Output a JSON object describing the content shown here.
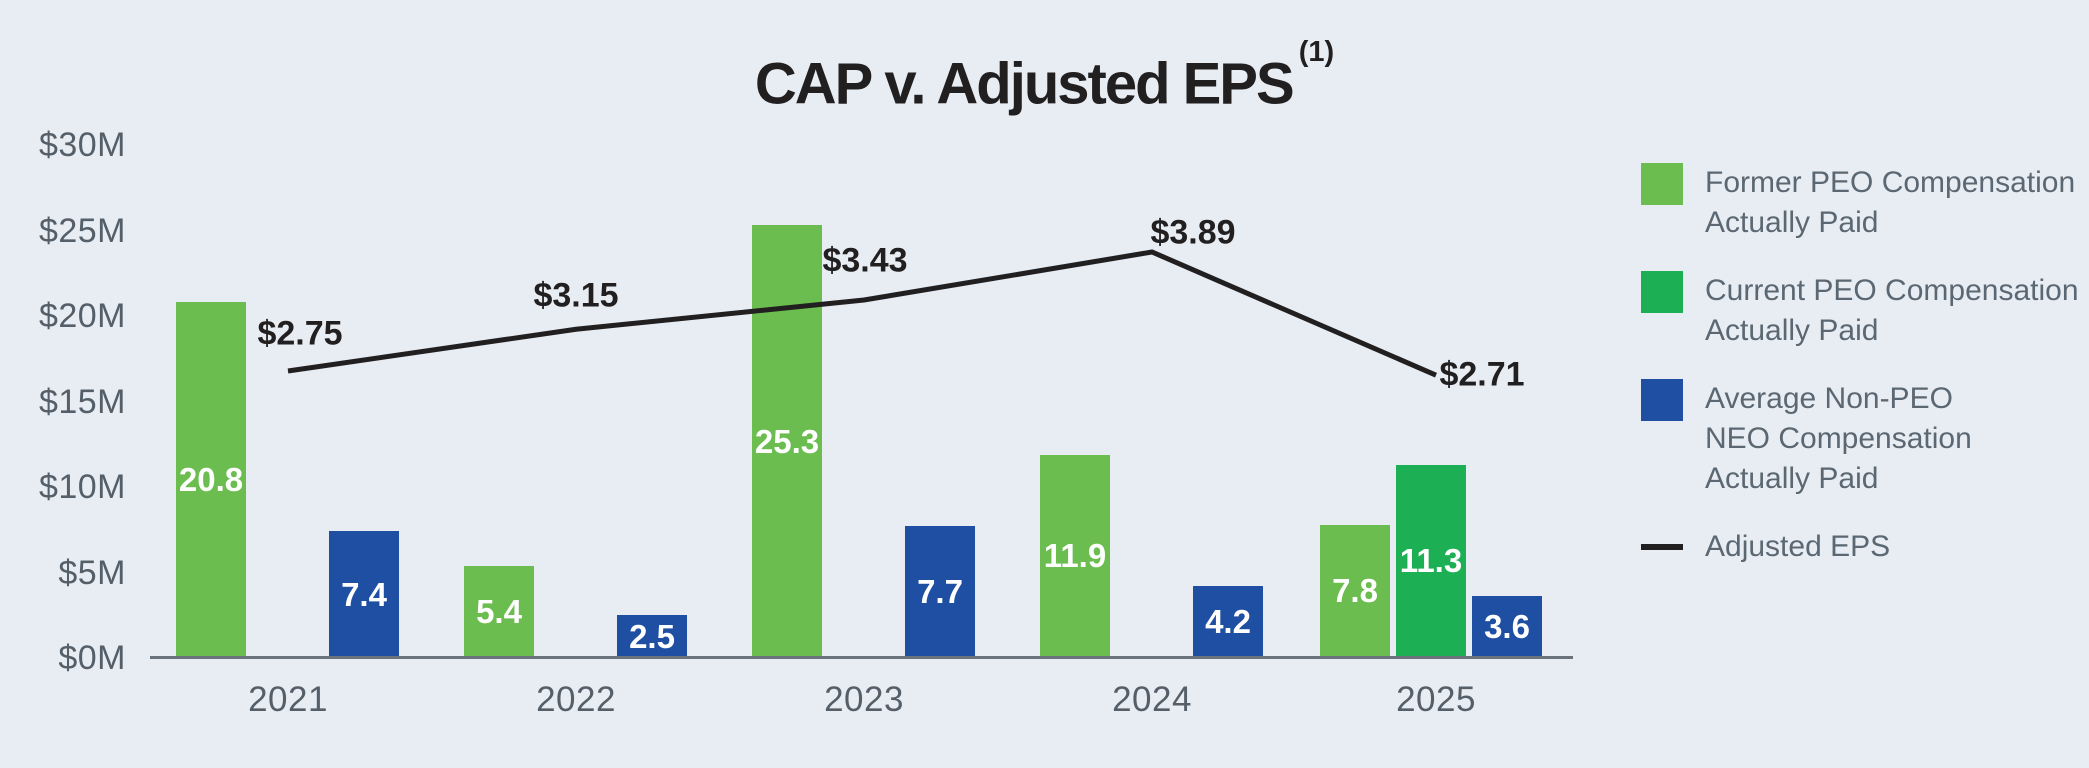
{
  "title": {
    "text": "CAP v. Adjusted EPS",
    "superscript": "(1)"
  },
  "chart_data": {
    "type": "bar+line",
    "title": "CAP v. Adjusted EPS (1)",
    "categories": [
      "2021",
      "2022",
      "2023",
      "2024",
      "2025"
    ],
    "bar_unit": "$M",
    "series": [
      {
        "key": "former-peo",
        "name": "Former PEO Compensation Actually Paid",
        "color": "#6cbd4f",
        "values": [
          20.8,
          5.4,
          25.3,
          11.9,
          7.8
        ],
        "labels": [
          "20.8",
          "5.4",
          "25.3",
          "11.9",
          "7.8"
        ]
      },
      {
        "key": "current-peo",
        "name": "Current PEO Compensation Actually Paid",
        "color": "#1daf53",
        "values": [
          null,
          null,
          null,
          null,
          11.3
        ],
        "labels": [
          null,
          null,
          null,
          null,
          "11.3"
        ]
      },
      {
        "key": "non-peo-neo",
        "name": "Average Non-PEO NEO Compensation Actually Paid",
        "color": "#1e4fa2",
        "values": [
          7.4,
          2.5,
          7.7,
          4.2,
          3.6
        ],
        "labels": [
          "7.4",
          "2.5",
          "7.7",
          "4.2",
          "3.6"
        ]
      }
    ],
    "line_series": {
      "name": "Adjusted EPS",
      "color": "#221f20",
      "values": [
        2.75,
        3.15,
        3.43,
        3.89,
        2.71
      ],
      "labels": [
        "$2.75",
        "$3.15",
        "$3.43",
        "$3.89",
        "$2.71"
      ]
    },
    "y_axis": {
      "ticks": [
        "$30M",
        "$25M",
        "$20M",
        "$15M",
        "$10M",
        "$5M",
        "$0M"
      ],
      "min": 0,
      "max": 30,
      "step": 5
    },
    "grid": false,
    "legend_position": "right"
  },
  "legend": {
    "items": [
      {
        "swatch": "square",
        "color": "#6cbd4f",
        "lines": [
          "Former PEO Compensation",
          "Actually Paid"
        ]
      },
      {
        "swatch": "square",
        "color": "#1daf53",
        "lines": [
          "Current PEO Compensation",
          "Actually Paid"
        ]
      },
      {
        "swatch": "square",
        "color": "#1e4fa2",
        "lines": [
          "Average Non-PEO",
          "NEO Compensation",
          "Actually Paid"
        ]
      },
      {
        "swatch": "line",
        "color": "#221f20",
        "lines": [
          "Adjusted EPS"
        ]
      }
    ]
  },
  "colors": {
    "background": "#e8edf3",
    "former_peo_green": "#6cbd4f",
    "current_peo_green": "#1daf53",
    "non_peo_blue": "#1e4fa2",
    "eps_line_black": "#221f20",
    "axis_text_gray": "#555f69",
    "legend_text_gray": "#5b6772",
    "bar_label_white": "#ffffff"
  }
}
